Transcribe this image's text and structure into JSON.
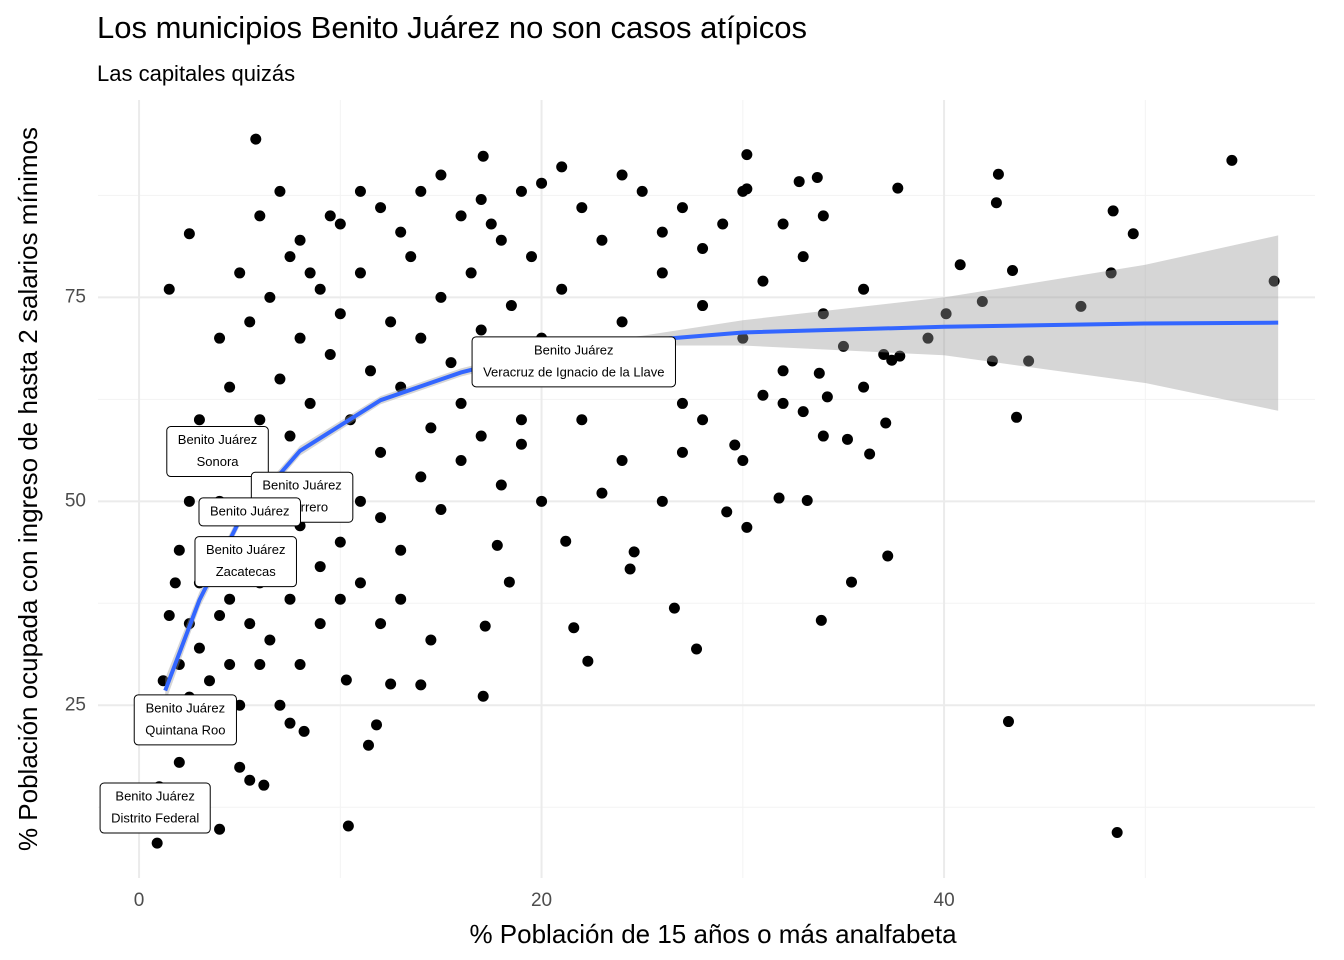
{
  "chart_data": {
    "type": "scatter",
    "title": "Los municipios Benito Juárez no son casos atípicos",
    "subtitle": "Las capitales quizás",
    "x_label": "% Población de 15 años o más analfabeta",
    "y_label": "% Población ocupada con ingreso de hasta 2 salarios mínimos",
    "xlim": [
      -2.04,
      58.43
    ],
    "ylim": [
      3.82,
      99.2
    ],
    "xticks": [
      0,
      20,
      40
    ],
    "yticks": [
      25,
      50,
      75
    ],
    "xminorticks": [
      10,
      30,
      50
    ],
    "yminorticks": [
      12.5,
      37.5,
      62.5,
      87.5
    ],
    "grid": true,
    "series": [
      {
        "color": "#000000",
        "x": [
          54.3,
          56.4,
          48.6,
          43.2,
          37.2,
          33.9,
          35.4,
          27.7,
          26.6,
          22.3,
          21.6,
          17.1,
          17.2,
          10.4,
          4,
          0.9,
          1.5,
          5.8,
          2.5,
          17.1,
          30.2,
          42.7,
          42.6,
          48.4,
          49.4,
          48.3,
          46.8,
          43.4,
          41.9,
          40.8,
          40.1,
          39.2,
          42.4,
          44.2,
          43.6,
          37.7,
          33.7,
          32.8,
          30.2,
          37.1,
          37.4,
          37.8,
          33.8,
          34.2,
          35.2,
          36.3,
          33.2,
          31.8,
          30.2,
          29.2,
          29.6,
          24.6,
          24.4,
          21.2,
          18.4,
          17.8,
          14.5,
          14,
          12.5,
          11.8,
          11.4,
          10.3,
          8.2,
          7.5,
          6.2,
          5.5,
          5,
          2,
          2.5,
          3,
          3.5,
          4,
          4.5,
          5,
          5.5,
          6,
          6.5,
          7,
          7.5,
          8,
          8.5,
          9,
          9.5,
          10,
          10.5,
          11,
          11.5,
          12,
          12.5,
          13,
          13.5,
          14,
          14.5,
          15,
          15.5,
          16,
          16.5,
          17,
          17.5,
          18,
          18.5,
          19,
          19.5,
          20,
          21,
          22,
          23,
          24,
          25,
          26,
          27,
          28,
          29,
          30,
          31,
          32,
          33,
          34,
          35,
          36,
          1.5,
          2,
          1,
          2.5,
          3,
          3.5,
          4,
          4.5,
          5,
          5.5,
          6,
          6.5,
          7,
          7.5,
          8,
          9,
          10,
          11,
          12,
          13,
          14,
          15,
          16,
          17,
          18,
          19,
          20,
          3,
          4,
          5,
          6,
          7,
          8,
          9,
          10,
          12,
          14,
          16,
          18,
          20,
          22,
          24,
          26,
          28,
          30,
          32,
          34,
          3.5,
          4.5,
          5.5,
          6.5,
          7.5,
          8.5,
          9.5,
          11,
          13,
          15,
          17,
          19,
          21,
          25,
          27,
          2,
          2.5,
          1.5,
          1.2,
          1.8,
          6,
          7,
          8,
          9,
          10,
          11,
          12,
          13,
          22,
          24,
          26,
          28,
          30,
          32,
          34,
          36,
          37,
          23,
          27,
          31,
          33
        ],
        "values": [
          91.8,
          77,
          9.4,
          23,
          43.3,
          35.4,
          40.1,
          31.9,
          36.9,
          30.4,
          34.5,
          26.1,
          34.7,
          10.2,
          9.8,
          8.1,
          76,
          94.4,
          82.8,
          92.3,
          92.5,
          90.1,
          86.6,
          85.6,
          82.8,
          78,
          73.9,
          78.3,
          74.5,
          79,
          73,
          70,
          67.2,
          67.2,
          60.3,
          88.4,
          89.7,
          89.2,
          88.3,
          59.6,
          67.3,
          67.8,
          65.7,
          62.8,
          57.6,
          55.8,
          50.1,
          50.4,
          46.8,
          48.7,
          56.9,
          43.8,
          41.7,
          45.1,
          40.1,
          44.6,
          33,
          27.5,
          27.6,
          22.6,
          20.1,
          28.1,
          21.8,
          22.8,
          15.2,
          15.8,
          17.4,
          30,
          35,
          40,
          45,
          50,
          38,
          42,
          55,
          60,
          48,
          65,
          58,
          70,
          62,
          52,
          68,
          73,
          60,
          78,
          66,
          56,
          72,
          64,
          80,
          70,
          59,
          75,
          67,
          62,
          78,
          71,
          84,
          66,
          74,
          60,
          80,
          70,
          76,
          65,
          82,
          72,
          68,
          78,
          62,
          74,
          84,
          70,
          77,
          66,
          80,
          73,
          69,
          76,
          22,
          18,
          15,
          26,
          32,
          28,
          36,
          30,
          25,
          35,
          40,
          33,
          44,
          38,
          47,
          42,
          45,
          50,
          48,
          44,
          53,
          49,
          55,
          58,
          52,
          57,
          50,
          60,
          70,
          78,
          85,
          88,
          82,
          76,
          84,
          86,
          88,
          85,
          82,
          89,
          86,
          90,
          83,
          81,
          88,
          84,
          85,
          55,
          64,
          72,
          75,
          80,
          78,
          85,
          88,
          83,
          90,
          87,
          88,
          91,
          88,
          86,
          44,
          50,
          36,
          28,
          40,
          30,
          25,
          30,
          35,
          38,
          40,
          35,
          38,
          60,
          55,
          50,
          60,
          55,
          62,
          58,
          64,
          68,
          51,
          56,
          63,
          61
        ]
      }
    ],
    "smooth": {
      "color": "#3366ff",
      "x": [
        1.3,
        3,
        5,
        8,
        12,
        16,
        20,
        25,
        30,
        40,
        50,
        56.6
      ],
      "values": [
        26.8,
        37.9,
        47.7,
        56.2,
        62.4,
        65.8,
        68.3,
        69.7,
        70.7,
        71.4,
        71.8,
        71.9
      ],
      "lower": [
        25.3,
        36.9,
        47,
        55.6,
        61.9,
        65.3,
        67.8,
        69.1,
        69.1,
        67.9,
        64.5,
        61.1
      ],
      "upper": [
        28.3,
        38.9,
        48.4,
        56.8,
        62.9,
        66.3,
        68.8,
        70.3,
        72.2,
        75,
        79,
        82.6
      ]
    },
    "annotations": [
      {
        "x": 21.6,
        "y": 67.1,
        "lines": [
          "Benito Juárez",
          "Veracruz de Ignacio de la Llave"
        ]
      },
      {
        "x": 3.9,
        "y": 56.1,
        "lines": [
          "Benito Juárez",
          "Sonora"
        ]
      },
      {
        "x": 8.1,
        "y": 50.5,
        "lines": [
          "Benito Juárez",
          "Guerrero"
        ]
      },
      {
        "x": 5.5,
        "y": 48.7,
        "lines": [
          "Benito Juárez"
        ]
      },
      {
        "x": 5.3,
        "y": 42.6,
        "lines": [
          "Benito Juárez",
          "Zacatecas"
        ]
      },
      {
        "x": 2.3,
        "y": 23.2,
        "lines": [
          "Benito Juárez",
          "Quintana Roo"
        ]
      },
      {
        "x": 0.8,
        "y": 12.4,
        "lines": [
          "Benito Juárez",
          "Distrito Federal"
        ]
      }
    ]
  }
}
